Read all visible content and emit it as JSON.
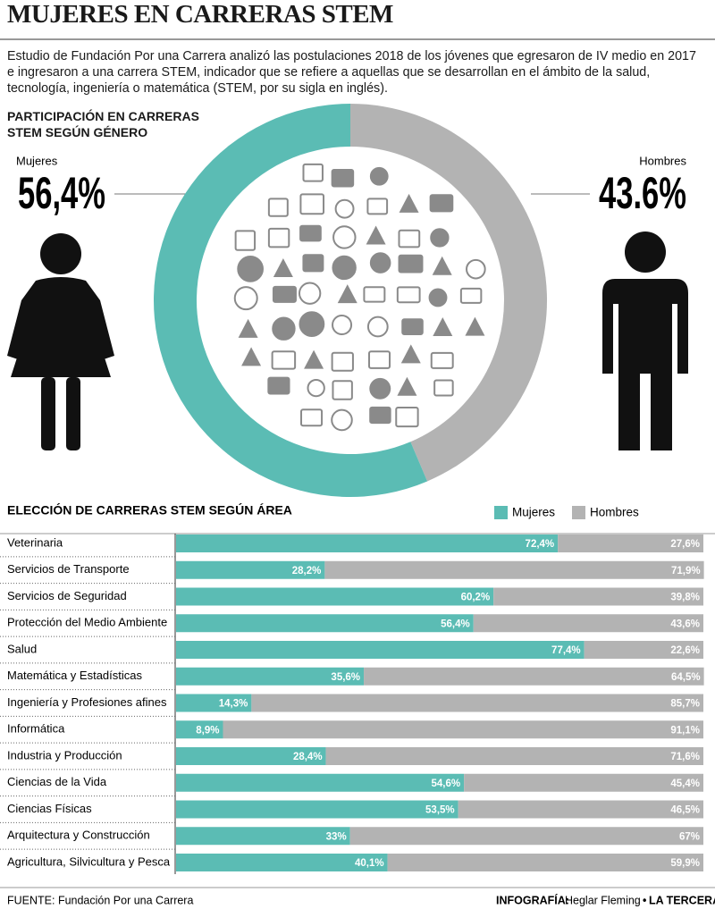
{
  "header": {
    "title": "MUJERES EN CARRERAS STEM",
    "intro": "Estudio de Fundación Por una Carrera analizó las postulaciones 2018 de los jóvenes que egresaron de IV medio en 2017 e ingresaron a una carrera STEM, indicador que se refiere a aquellas que se desarrollan en el ámbito de la salud, tecnología, ingeniería o matemática (STEM, por su sigla en inglés)."
  },
  "chart_data": [
    {
      "type": "donut",
      "title": "PARTICIPACIÓN EN CARRERAS STEM SEGÚN GÉNERO",
      "categories": [
        "Mujeres",
        "Hombres"
      ],
      "values": [
        56.4,
        43.6
      ],
      "value_labels": [
        "56,4%",
        "43.6%"
      ],
      "colors": [
        "#5bbcb4",
        "#b3b3b3"
      ]
    },
    {
      "type": "stacked-hbar",
      "title": "ELECCIÓN DE CARRERAS STEM SEGÚN ÁREA",
      "categories": [
        "Veterinaria",
        "Servicios de Transporte",
        "Servicios de Seguridad",
        "Protección del Medio Ambiente",
        "Salud",
        "Matemática y Estadísticas",
        "Ingeniería y Profesiones afines",
        "Informática",
        "Industria y Producción",
        "Ciencias de la Vida",
        "Ciencias Físicas",
        "Arquitectura y Construcción",
        "Agricultura, Silvicultura y Pesca"
      ],
      "xlim": [
        0,
        100
      ],
      "legend": "top-right",
      "series": [
        {
          "name": "Mujeres",
          "color": "#5bbcb4",
          "values": [
            72.4,
            28.2,
            60.2,
            56.4,
            77.4,
            35.6,
            14.3,
            8.9,
            28.4,
            54.6,
            53.5,
            33,
            40.1
          ],
          "value_labels": [
            "72,4%",
            "28,2%",
            "60,2%",
            "56,4%",
            "77,4%",
            "35,6%",
            "14,3%",
            "8,9%",
            "28,4%",
            "54,6%",
            "53,5%",
            "33%",
            "40,1%"
          ]
        },
        {
          "name": "Hombres",
          "color": "#b3b3b3",
          "values": [
            27.6,
            71.9,
            39.8,
            43.6,
            22.6,
            64.5,
            85.7,
            91.1,
            71.6,
            45.4,
            46.5,
            67,
            59.9
          ],
          "value_labels": [
            "27,6%",
            "71,9%",
            "39,8%",
            "43,6%",
            "22,6%",
            "64,5%",
            "85,7%",
            "91,1%",
            "71,6%",
            "45,4%",
            "46,5%",
            "67%",
            "59,9%"
          ]
        }
      ]
    }
  ],
  "footer": {
    "source": "FUENTE: Fundación Por una Carrera",
    "credit": "INFOGRAFÍA:",
    "author": "Heglar Fleming",
    "separator": "•",
    "publisher": "LA TERCERA"
  }
}
